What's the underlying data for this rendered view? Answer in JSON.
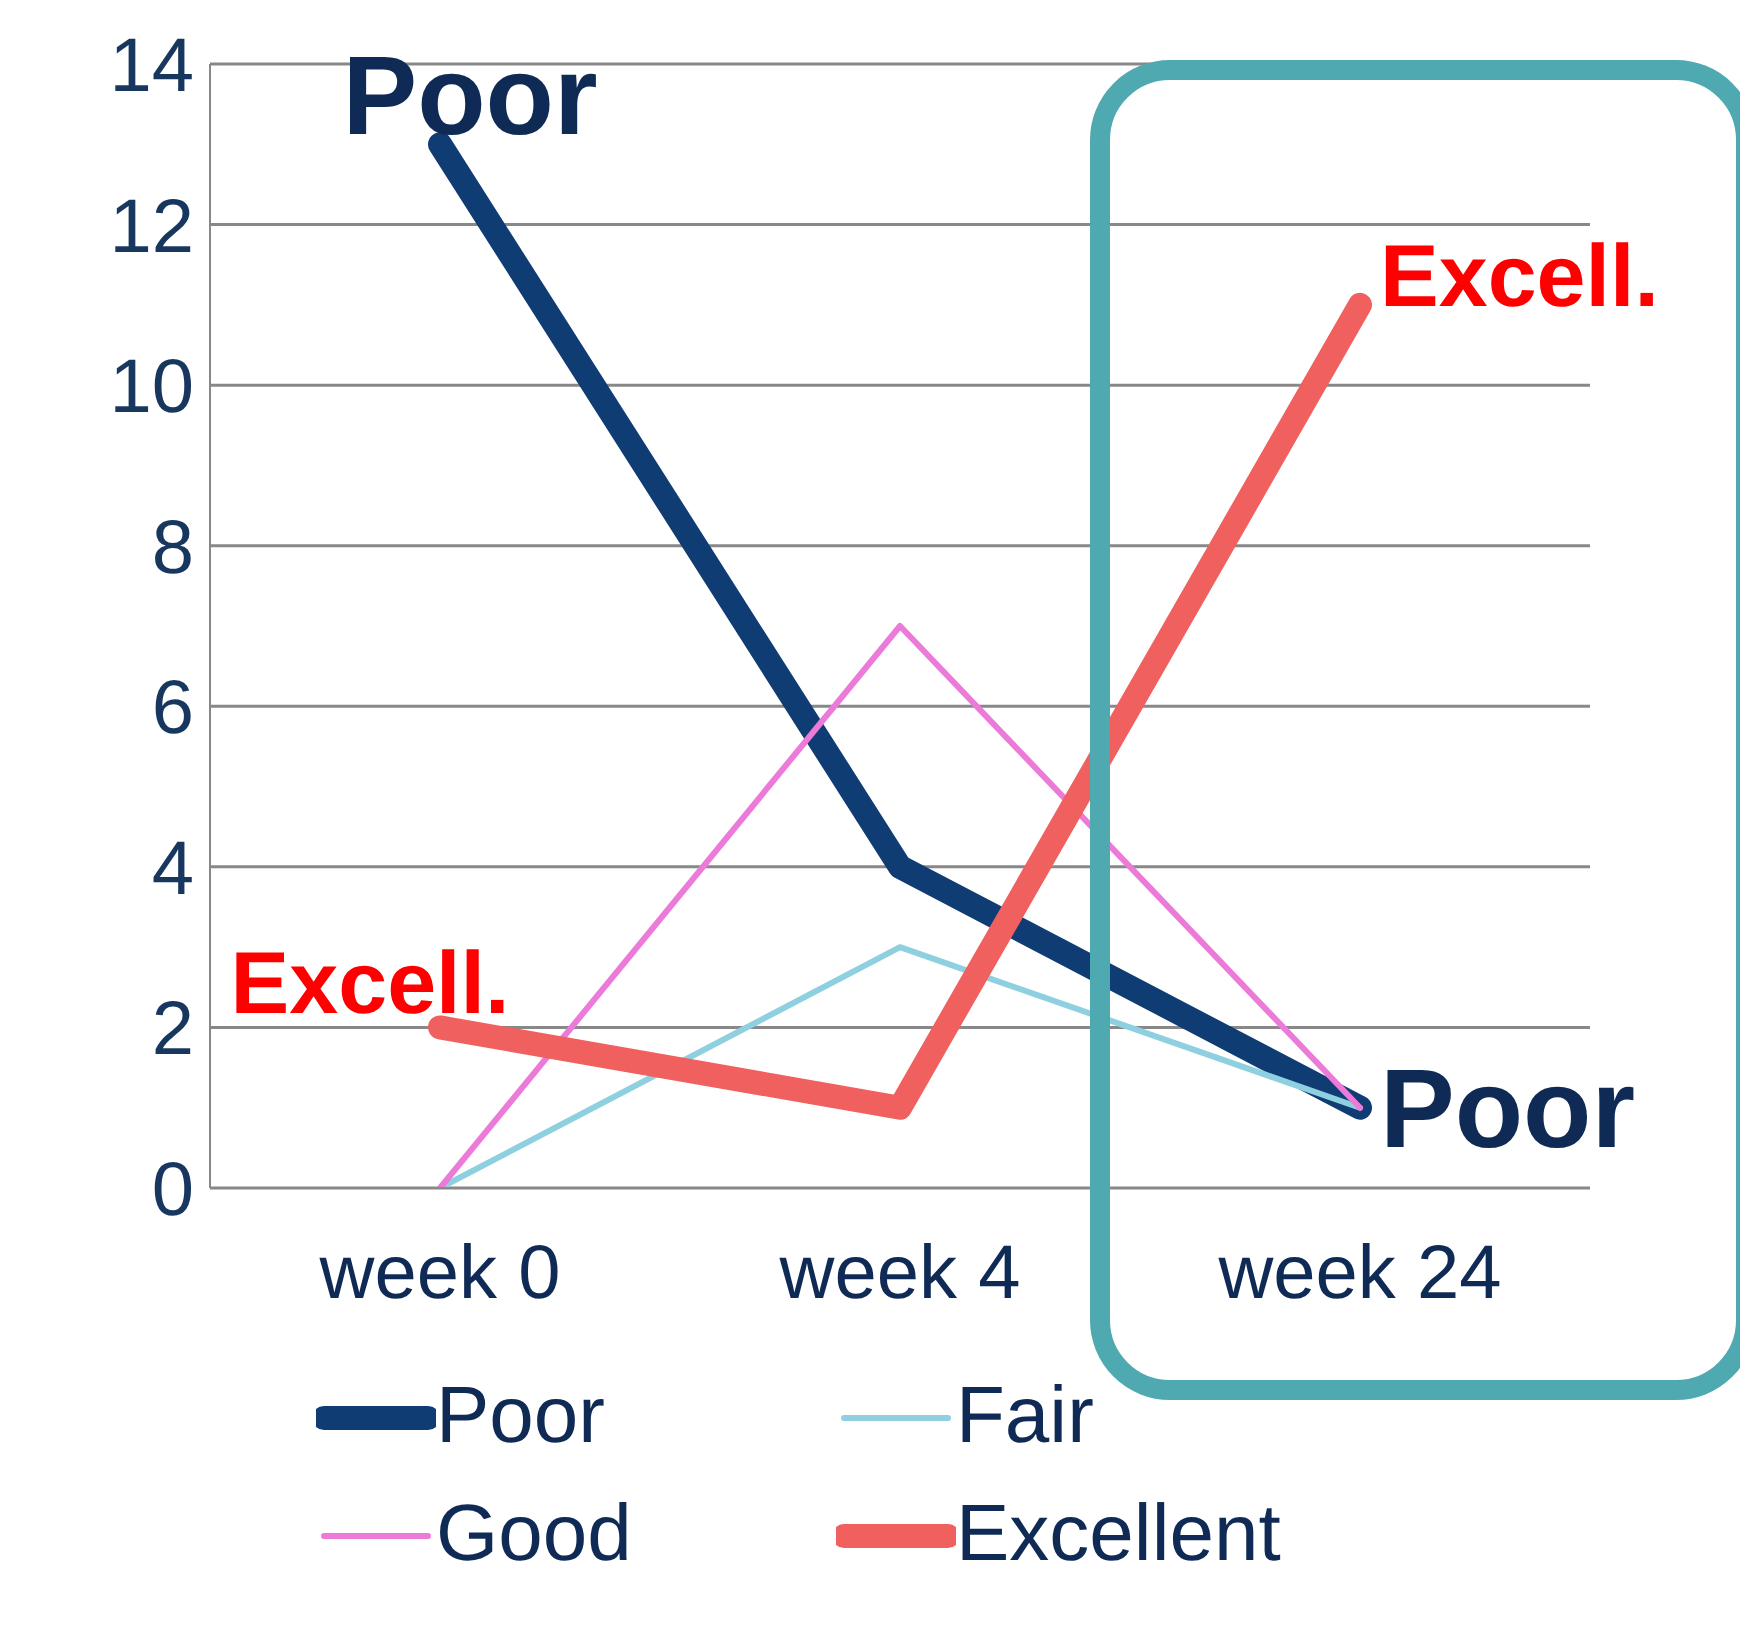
{
  "chart_data": {
    "type": "line",
    "categories": [
      "week 0",
      "week 4",
      "week 24"
    ],
    "series": [
      {
        "name": "Poor",
        "color": "#0e3c73",
        "values": [
          13,
          4,
          1
        ]
      },
      {
        "name": "Fair",
        "color": "#8fd0e0",
        "values": [
          0,
          3,
          1
        ]
      },
      {
        "name": "Good",
        "color": "#ec7ad8",
        "values": [
          0,
          7,
          1
        ]
      },
      {
        "name": "Excellent",
        "color": "#f0605f",
        "values": [
          2,
          1,
          11
        ]
      }
    ],
    "ylim": [
      0,
      14
    ],
    "yticks": [
      0,
      2,
      4,
      6,
      8,
      10,
      12,
      14
    ],
    "grid": "y",
    "legend": "bottom",
    "marker": "none",
    "line_style": "solid",
    "annotations": [
      {
        "text": "Poor",
        "x": "week 0",
        "y": 13
      },
      {
        "text": "Excell.",
        "x": "week 0",
        "y": 2
      },
      {
        "text": "Excell.",
        "x": "week 24",
        "y": 11
      },
      {
        "text": "Poor",
        "x": "week 24",
        "y": 1
      }
    ]
  }
}
